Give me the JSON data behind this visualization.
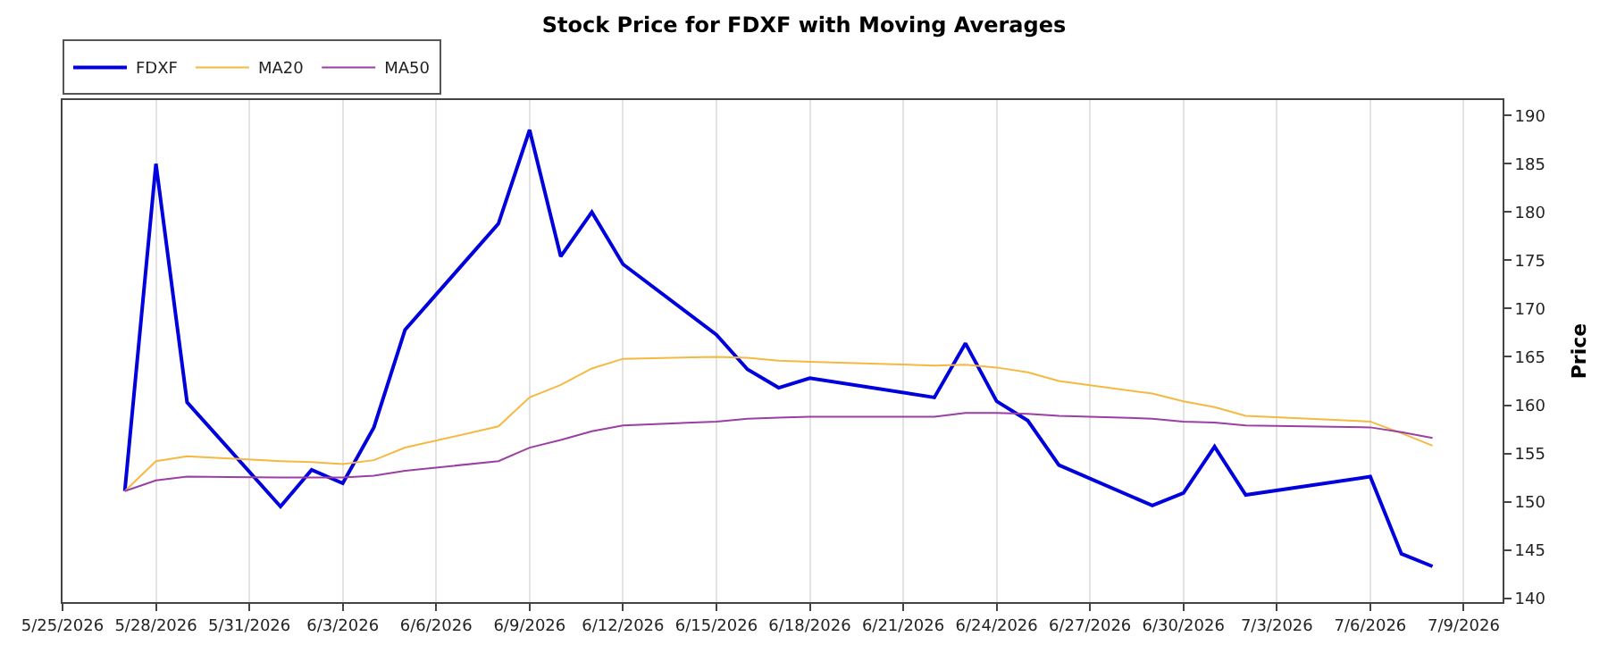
{
  "chart_data": {
    "type": "line",
    "title": "Stock Price for FDXF with Moving Averages",
    "ylabel": "Price",
    "x": [
      "2026-05-27",
      "2026-05-28",
      "2026-05-29",
      "2026-06-01",
      "2026-06-02",
      "2026-06-03",
      "2026-06-04",
      "2026-06-05",
      "2026-06-08",
      "2026-06-09",
      "2026-06-10",
      "2026-06-11",
      "2026-06-12",
      "2026-06-15",
      "2026-06-16",
      "2026-06-17",
      "2026-06-18",
      "2026-06-22",
      "2026-06-23",
      "2026-06-24",
      "2026-06-25",
      "2026-06-26",
      "2026-06-29",
      "2026-06-30",
      "2026-07-01",
      "2026-07-02",
      "2026-07-06",
      "2026-07-07",
      "2026-07-08"
    ],
    "series": [
      {
        "name": "FDXF",
        "color": "#0000dd",
        "values": [
          151.1,
          185.0,
          160.3,
          149.5,
          153.3,
          151.9,
          157.7,
          167.8,
          178.8,
          188.5,
          175.4,
          180.0,
          174.6,
          167.3,
          163.7,
          161.8,
          162.8,
          160.8,
          166.4,
          160.4,
          158.4,
          153.8,
          149.6,
          150.9,
          155.7,
          150.7,
          152.6,
          144.6,
          143.3
        ]
      },
      {
        "name": "MA20",
        "color": "#f5b942",
        "values": [
          151.1,
          154.2,
          154.7,
          154.2,
          154.1,
          153.9,
          154.3,
          155.6,
          157.8,
          160.8,
          162.1,
          163.8,
          164.8,
          165.0,
          164.9,
          164.6,
          164.5,
          164.1,
          164.2,
          163.9,
          163.4,
          162.5,
          161.2,
          160.4,
          159.8,
          158.9,
          158.3,
          157.1,
          155.8
        ]
      },
      {
        "name": "MA50",
        "color": "#9b3fa5",
        "values": [
          151.1,
          152.2,
          152.6,
          152.5,
          152.5,
          152.5,
          152.7,
          153.2,
          154.2,
          155.6,
          156.4,
          157.3,
          157.9,
          158.3,
          158.6,
          158.7,
          158.8,
          158.8,
          159.2,
          159.2,
          159.1,
          158.9,
          158.6,
          158.3,
          158.2,
          157.9,
          157.7,
          157.2,
          156.6
        ]
      }
    ],
    "xlim": [
      "2026-05-25",
      "2026-07-10T06:00"
    ],
    "xticks": [
      {
        "value": "2026-05-25",
        "label": "5/25/2026"
      },
      {
        "value": "2026-05-28",
        "label": "5/28/2026"
      },
      {
        "value": "2026-05-31",
        "label": "5/31/2026"
      },
      {
        "value": "2026-06-03",
        "label": "6/3/2026"
      },
      {
        "value": "2026-06-06",
        "label": "6/6/2026"
      },
      {
        "value": "2026-06-09",
        "label": "6/9/2026"
      },
      {
        "value": "2026-06-12",
        "label": "6/12/2026"
      },
      {
        "value": "2026-06-15",
        "label": "6/15/2026"
      },
      {
        "value": "2026-06-18",
        "label": "6/18/2026"
      },
      {
        "value": "2026-06-21",
        "label": "6/21/2026"
      },
      {
        "value": "2026-06-24",
        "label": "6/24/2026"
      },
      {
        "value": "2026-06-27",
        "label": "6/27/2026"
      },
      {
        "value": "2026-06-30",
        "label": "6/30/2026"
      },
      {
        "value": "2026-07-03",
        "label": "7/3/2026"
      },
      {
        "value": "2026-07-06",
        "label": "7/6/2026"
      },
      {
        "value": "2026-07-09",
        "label": "7/9/2026"
      }
    ],
    "ylim": [
      139.6,
      191.6
    ],
    "yticks": [
      140,
      145,
      150,
      155,
      160,
      165,
      170,
      175,
      180,
      185,
      190
    ],
    "grid": "x",
    "legend": "top left",
    "marker": "none",
    "line_style": "solid"
  }
}
